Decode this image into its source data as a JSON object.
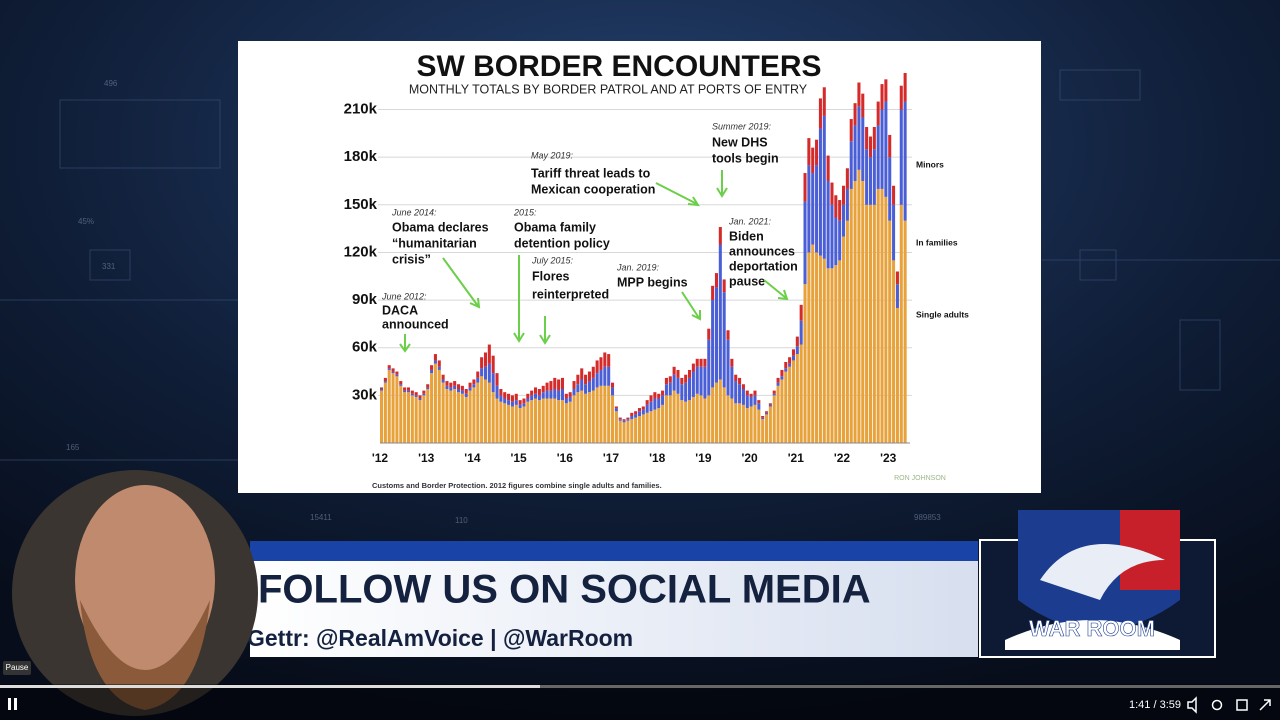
{
  "player": {
    "tooltip": "Pause",
    "time": "1:41 / 3:59"
  },
  "banner": {
    "headline": "FOLLOW US ON SOCIAL MEDIA",
    "handles": "Gettr: @RealAmVoice | @WarRoom"
  },
  "logo": "WAR ROOM",
  "background_labels": [
    "496",
    "45%",
    "331",
    "165",
    "15411",
    "110",
    "989853"
  ],
  "chart_data": {
    "type": "stacked-bar",
    "title": "SW BORDER ENCOUNTERS",
    "subtitle": "MONTHLY TOTALS BY BORDER PATROL AND AT PORTS OF ENTRY",
    "source": "Customs and Border Protection. 2012 figures combine single adults and families.",
    "watermark": "RON JOHNSON",
    "ylim": [
      0,
      250000
    ],
    "yticks": [
      {
        "value": 30000,
        "label": "30k"
      },
      {
        "value": 60000,
        "label": "60k"
      },
      {
        "value": 90000,
        "label": "90k"
      },
      {
        "value": 120000,
        "label": "120k"
      },
      {
        "value": 150000,
        "label": "150k"
      },
      {
        "value": 180000,
        "label": "180k"
      },
      {
        "value": 210000,
        "label": "210k"
      }
    ],
    "grid": true,
    "categories": [
      "'12",
      null,
      null,
      null,
      null,
      null,
      null,
      null,
      null,
      null,
      null,
      null,
      "'13",
      null,
      null,
      null,
      null,
      null,
      null,
      null,
      null,
      null,
      null,
      null,
      "'14",
      null,
      null,
      null,
      null,
      null,
      null,
      null,
      null,
      null,
      null,
      null,
      "'15",
      null,
      null,
      null,
      null,
      null,
      null,
      null,
      null,
      null,
      null,
      null,
      "'16",
      null,
      null,
      null,
      null,
      null,
      null,
      null,
      null,
      null,
      null,
      null,
      "'17",
      null,
      null,
      null,
      null,
      null,
      null,
      null,
      null,
      null,
      null,
      null,
      "'18",
      null,
      null,
      null,
      null,
      null,
      null,
      null,
      null,
      null,
      null,
      null,
      "'19",
      null,
      null,
      null,
      null,
      null,
      null,
      null,
      null,
      null,
      null,
      null,
      "'20",
      null,
      null,
      null,
      null,
      null,
      null,
      null,
      null,
      null,
      null,
      null,
      "'21",
      null,
      null,
      null,
      null,
      null,
      null,
      null,
      null,
      null,
      null,
      null,
      "'22",
      null,
      null,
      null,
      null,
      null,
      null,
      null,
      null,
      null,
      null,
      null,
      "'23",
      null,
      null,
      null,
      null
    ],
    "series": [
      {
        "name": "Single adults",
        "color": "#e8a23c",
        "values": [
          33000,
          38000,
          46000,
          44000,
          42000,
          36000,
          32000,
          32000,
          30000,
          29000,
          27000,
          30000,
          34000,
          44000,
          50000,
          46000,
          38000,
          34000,
          33000,
          34000,
          32000,
          31000,
          29000,
          33000,
          35000,
          38000,
          42000,
          40000,
          38000,
          32000,
          28000,
          26000,
          25000,
          24000,
          23000,
          24000,
          22000,
          23000,
          26000,
          27000,
          28000,
          27000,
          28000,
          28000,
          28000,
          28000,
          27000,
          27000,
          25000,
          26000,
          30000,
          32000,
          33000,
          31000,
          32000,
          33000,
          35000,
          36000,
          36000,
          36000,
          30000,
          20000,
          14000,
          13000,
          14000,
          15000,
          16000,
          17000,
          18000,
          19000,
          20000,
          21000,
          22000,
          24000,
          30000,
          30000,
          33000,
          31000,
          27000,
          26000,
          27000,
          29000,
          31000,
          30000,
          28000,
          30000,
          35000,
          38000,
          40000,
          35000,
          30000,
          28000,
          25000,
          25000,
          24000,
          22000,
          23000,
          24000,
          21000,
          15000,
          18000,
          23000,
          30000,
          36000,
          40000,
          45000,
          48000,
          52000,
          56000,
          62000,
          100000,
          120000,
          125000,
          120000,
          118000,
          116000,
          110000,
          110000,
          112000,
          115000,
          130000,
          140000,
          160000,
          165000,
          172000,
          165000,
          150000,
          150000,
          150000,
          160000,
          160000,
          155000,
          140000,
          115000,
          85000,
          150000,
          140000
        ]
      },
      {
        "name": "In families",
        "color": "#4a5fd6",
        "values": [
          1000,
          1000,
          1000,
          1000,
          1000,
          1000,
          1000,
          1000,
          1000,
          1000,
          1000,
          1000,
          1000,
          2000,
          2000,
          2000,
          2000,
          2000,
          2000,
          2000,
          2000,
          2000,
          2000,
          2000,
          2000,
          3000,
          5000,
          8000,
          12000,
          12000,
          8000,
          4000,
          3000,
          3000,
          3000,
          3000,
          2000,
          2000,
          2000,
          3000,
          3000,
          3000,
          4000,
          5000,
          5000,
          6000,
          6000,
          7000,
          3000,
          3000,
          4000,
          5000,
          7000,
          6000,
          7000,
          8000,
          9000,
          10000,
          12000,
          12000,
          5000,
          2000,
          1000,
          1000,
          1000,
          2000,
          2000,
          3000,
          3000,
          5000,
          6000,
          7000,
          6000,
          6000,
          7000,
          8000,
          10000,
          10000,
          10000,
          12000,
          14000,
          16000,
          17000,
          18000,
          20000,
          35000,
          55000,
          60000,
          85000,
          60000,
          35000,
          20000,
          14000,
          12000,
          10000,
          8000,
          6000,
          6000,
          4000,
          1000,
          1000,
          1000,
          1000,
          2000,
          2000,
          2000,
          2000,
          3000,
          5000,
          15000,
          52000,
          55000,
          45000,
          55000,
          80000,
          90000,
          55000,
          40000,
          30000,
          25000,
          20000,
          20000,
          30000,
          35000,
          40000,
          40000,
          35000,
          30000,
          35000,
          40000,
          50000,
          60000,
          40000,
          35000,
          15000,
          60000,
          75000
        ]
      },
      {
        "name": "Minors",
        "color": "#d42a2a",
        "values": [
          1000,
          2000,
          2000,
          2000,
          2000,
          2000,
          2000,
          2000,
          2000,
          2000,
          2000,
          2000,
          2000,
          3000,
          4000,
          4000,
          3000,
          3000,
          3000,
          3000,
          3000,
          3000,
          3000,
          3000,
          3000,
          4000,
          7000,
          9000,
          12000,
          11000,
          8000,
          4000,
          4000,
          4000,
          4000,
          4000,
          3000,
          3000,
          3000,
          3000,
          4000,
          4000,
          4000,
          5000,
          6000,
          7000,
          7000,
          7000,
          3000,
          3000,
          5000,
          6000,
          7000,
          6000,
          6000,
          7000,
          8000,
          8000,
          9000,
          8000,
          3000,
          1000,
          1000,
          1000,
          1000,
          2000,
          2000,
          2000,
          2000,
          3000,
          4000,
          4000,
          3000,
          3000,
          4000,
          4000,
          5000,
          5000,
          4000,
          5000,
          5000,
          5000,
          5000,
          5000,
          5000,
          7000,
          9000,
          9000,
          11000,
          8000,
          6000,
          5000,
          4000,
          4000,
          3000,
          3000,
          2000,
          3000,
          2000,
          1000,
          1000,
          1000,
          2000,
          3000,
          4000,
          4000,
          4000,
          4000,
          6000,
          10000,
          18000,
          17000,
          16000,
          16000,
          19000,
          18000,
          16000,
          14000,
          14000,
          13000,
          12000,
          13000,
          14000,
          14000,
          15000,
          15000,
          14000,
          13000,
          14000,
          15000,
          16000,
          14000,
          14000,
          12000,
          8000,
          15000,
          18000
        ]
      }
    ],
    "annotations": [
      {
        "date": "June 2012:",
        "lines": [
          "DACA",
          "announced"
        ]
      },
      {
        "date": "June 2014:",
        "lines": [
          "Obama declares",
          "“humanitarian",
          "crisis”"
        ]
      },
      {
        "date": "2015:",
        "lines": [
          "Obama family",
          "detention policy"
        ]
      },
      {
        "date": "July 2015:",
        "lines": [
          "Flores",
          "reinterpreted"
        ]
      },
      {
        "date": "May 2019:",
        "lines": [
          "Tariff threat leads to",
          "Mexican cooperation"
        ]
      },
      {
        "date": "Jan. 2019:",
        "lines": [
          "MPP begins"
        ]
      },
      {
        "date": "Summer 2019:",
        "lines": [
          "New DHS",
          "tools begin"
        ]
      },
      {
        "date": "Jan. 2021:",
        "lines": [
          "Biden",
          "announces",
          "deportation",
          "pause"
        ]
      }
    ]
  }
}
